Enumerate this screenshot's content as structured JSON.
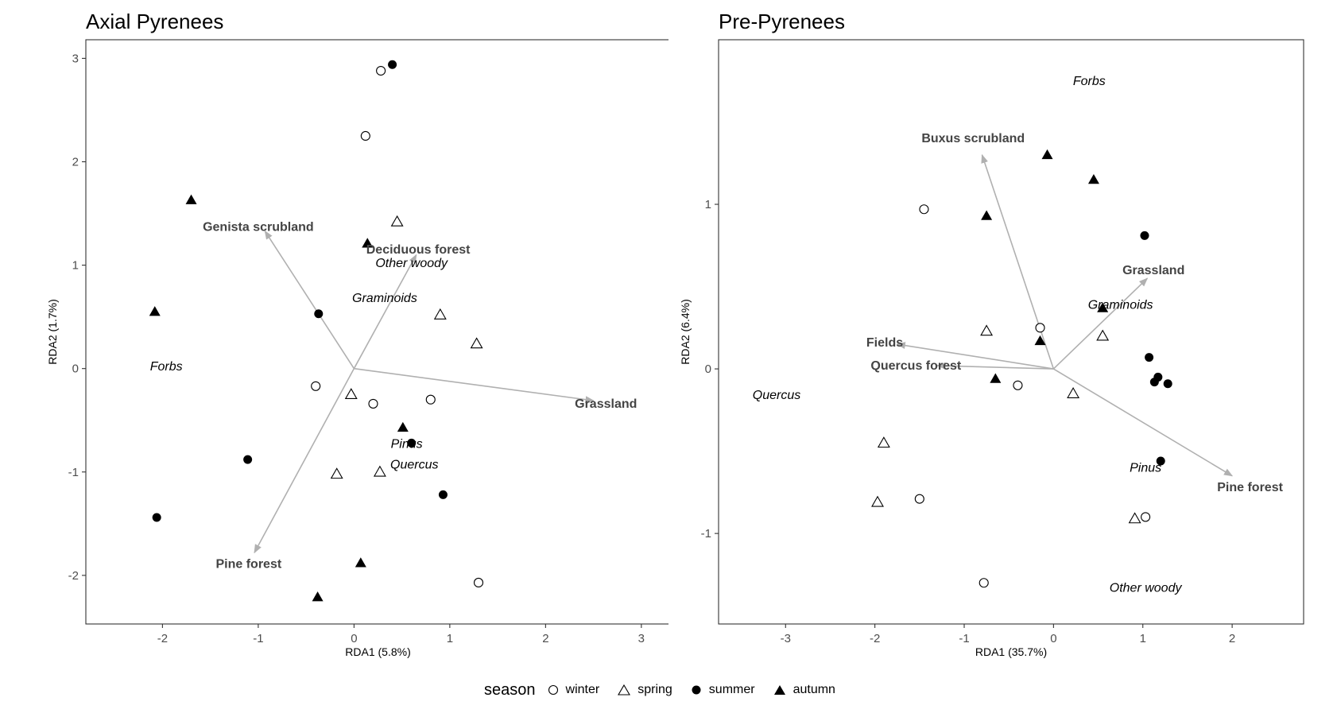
{
  "legend": {
    "title": "season",
    "items": [
      {
        "key": "winter",
        "label": "winter",
        "shape": "circle-open"
      },
      {
        "key": "spring",
        "label": "spring",
        "shape": "triangle-open"
      },
      {
        "key": "summer",
        "label": "summer",
        "shape": "circle-filled"
      },
      {
        "key": "autumn",
        "label": "autumn",
        "shape": "triangle-filled"
      }
    ]
  },
  "chart_data": [
    {
      "type": "scatter",
      "title": "Axial Pyrenees",
      "xlabel": "RDA1 (5.8%)",
      "ylabel": "RDA2 (1.7%)",
      "xlim": [
        -2.8,
        3.3
      ],
      "ylim": [
        -2.47,
        3.18
      ],
      "xticks": [
        -2,
        -1,
        0,
        1,
        2,
        3
      ],
      "yticks": [
        -2,
        -1,
        0,
        1,
        2,
        3
      ],
      "grid": false,
      "arrow_color": "#b0b0b0",
      "arrows": [
        {
          "label": "Genista scrubland",
          "x": -0.93,
          "y": 1.33,
          "lx": -1.0,
          "ly": 1.37
        },
        {
          "label": "Deciduous forest",
          "x": 0.65,
          "y": 1.1,
          "lx": 0.67,
          "ly": 1.15
        },
        {
          "label": "Grassland",
          "x": 2.5,
          "y": -0.31,
          "lx": 2.63,
          "ly": -0.34
        },
        {
          "label": "Pine forest",
          "x": -1.04,
          "y": -1.78,
          "lx": -1.1,
          "ly": -1.89
        }
      ],
      "species": [
        {
          "label": "Other woody",
          "x": 0.6,
          "y": 1.02
        },
        {
          "label": "Graminoids",
          "x": 0.32,
          "y": 0.68
        },
        {
          "label": "Forbs",
          "x": -1.96,
          "y": 0.02
        },
        {
          "label": "Pinus",
          "x": 0.55,
          "y": -0.73
        },
        {
          "label": "Quercus",
          "x": 0.63,
          "y": -0.93
        }
      ],
      "points": [
        {
          "season": "winter",
          "x": 0.28,
          "y": 2.88
        },
        {
          "season": "winter",
          "x": 0.12,
          "y": 2.25
        },
        {
          "season": "winter",
          "x": -0.4,
          "y": -0.17
        },
        {
          "season": "winter",
          "x": 0.2,
          "y": -0.34
        },
        {
          "season": "winter",
          "x": 0.8,
          "y": -0.3
        },
        {
          "season": "winter",
          "x": 1.3,
          "y": -2.07
        },
        {
          "season": "spring",
          "x": 0.45,
          "y": 1.42
        },
        {
          "season": "spring",
          "x": 0.9,
          "y": 0.52
        },
        {
          "season": "spring",
          "x": 1.28,
          "y": 0.24
        },
        {
          "season": "spring",
          "x": -0.03,
          "y": -0.25
        },
        {
          "season": "spring",
          "x": -0.18,
          "y": -1.02
        },
        {
          "season": "spring",
          "x": 0.27,
          "y": -1.0
        },
        {
          "season": "summer",
          "x": 0.4,
          "y": 2.94
        },
        {
          "season": "summer",
          "x": -0.37,
          "y": 0.53
        },
        {
          "season": "summer",
          "x": 0.6,
          "y": -0.72
        },
        {
          "season": "summer",
          "x": 0.93,
          "y": -1.22
        },
        {
          "season": "summer",
          "x": -1.11,
          "y": -0.88
        },
        {
          "season": "summer",
          "x": -2.06,
          "y": -1.44
        },
        {
          "season": "autumn",
          "x": -1.7,
          "y": 1.63
        },
        {
          "season": "autumn",
          "x": 0.14,
          "y": 1.21
        },
        {
          "season": "autumn",
          "x": -2.08,
          "y": 0.55
        },
        {
          "season": "autumn",
          "x": 0.51,
          "y": -0.57
        },
        {
          "season": "autumn",
          "x": 0.07,
          "y": -1.88
        },
        {
          "season": "autumn",
          "x": -0.38,
          "y": -2.21
        }
      ]
    },
    {
      "type": "scatter",
      "title": "Pre-Pyrenees",
      "xlabel": "RDA1 (35.7%)",
      "ylabel": "RDA2 (6.4%)",
      "xlim": [
        -3.75,
        2.8
      ],
      "ylim": [
        -1.55,
        2.0
      ],
      "xticks": [
        -3,
        -2,
        -1,
        0,
        1,
        2
      ],
      "yticks": [
        -1,
        0,
        1
      ],
      "grid": false,
      "arrow_color": "#b0b0b0",
      "arrows": [
        {
          "label": "Buxus scrubland",
          "x": -0.8,
          "y": 1.3,
          "lx": -0.9,
          "ly": 1.4
        },
        {
          "label": "Grassland",
          "x": 1.05,
          "y": 0.55,
          "lx": 1.12,
          "ly": 0.6
        },
        {
          "label": "Fields",
          "x": -1.75,
          "y": 0.15,
          "lx": -1.89,
          "ly": 0.16
        },
        {
          "label": "Quercus forest",
          "x": -1.3,
          "y": 0.02,
          "lx": -1.54,
          "ly": 0.02
        },
        {
          "label": "Pine forest",
          "x": 2.0,
          "y": -0.65,
          "lx": 2.2,
          "ly": -0.72
        }
      ],
      "species": [
        {
          "label": "Forbs",
          "x": 0.4,
          "y": 1.75
        },
        {
          "label": "Graminoids",
          "x": 0.75,
          "y": 0.39
        },
        {
          "label": "Quercus",
          "x": -3.1,
          "y": -0.16
        },
        {
          "label": "Pinus",
          "x": 1.03,
          "y": -0.6
        },
        {
          "label": "Other woody",
          "x": 1.03,
          "y": -1.33
        }
      ],
      "points": [
        {
          "season": "winter",
          "x": -1.45,
          "y": 0.97
        },
        {
          "season": "winter",
          "x": -0.15,
          "y": 0.25
        },
        {
          "season": "winter",
          "x": -0.4,
          "y": -0.1
        },
        {
          "season": "winter",
          "x": -1.5,
          "y": -0.79
        },
        {
          "season": "winter",
          "x": 1.03,
          "y": -0.9
        },
        {
          "season": "winter",
          "x": -0.78,
          "y": -1.3
        },
        {
          "season": "spring",
          "x": -0.75,
          "y": 0.23
        },
        {
          "season": "spring",
          "x": 0.55,
          "y": 0.2
        },
        {
          "season": "spring",
          "x": 0.22,
          "y": -0.15
        },
        {
          "season": "spring",
          "x": -1.9,
          "y": -0.45
        },
        {
          "season": "spring",
          "x": -1.97,
          "y": -0.81
        },
        {
          "season": "spring",
          "x": 0.91,
          "y": -0.91
        },
        {
          "season": "summer",
          "x": 1.02,
          "y": 0.81
        },
        {
          "season": "summer",
          "x": 1.07,
          "y": 0.07
        },
        {
          "season": "summer",
          "x": 1.17,
          "y": -0.05
        },
        {
          "season": "summer",
          "x": 1.13,
          "y": -0.08
        },
        {
          "season": "summer",
          "x": 1.28,
          "y": -0.09
        },
        {
          "season": "summer",
          "x": 1.2,
          "y": -0.56
        },
        {
          "season": "autumn",
          "x": -0.07,
          "y": 1.3
        },
        {
          "season": "autumn",
          "x": 0.45,
          "y": 1.15
        },
        {
          "season": "autumn",
          "x": -0.75,
          "y": 0.93
        },
        {
          "season": "autumn",
          "x": 0.55,
          "y": 0.37
        },
        {
          "season": "autumn",
          "x": -0.15,
          "y": 0.17
        },
        {
          "season": "autumn",
          "x": -0.65,
          "y": -0.06
        }
      ]
    }
  ]
}
